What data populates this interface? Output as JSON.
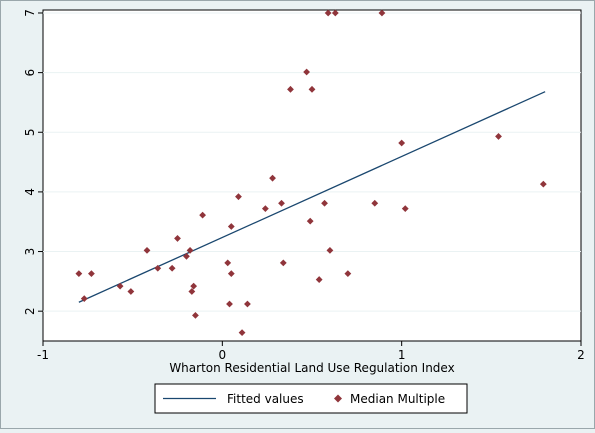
{
  "chart_data": {
    "type": "scatter",
    "xlabel": "Wharton Residential Land Use Regulation Index",
    "ylabel": "",
    "xlim": [
      -1.0,
      2.0
    ],
    "ylim": [
      1.5,
      7.05
    ],
    "x_ticks": [
      -1,
      0,
      1,
      2
    ],
    "x_tick_labels": [
      "-1",
      "0",
      "1",
      "2"
    ],
    "y_ticks": [
      2,
      3,
      4,
      5,
      6,
      7
    ],
    "y_tick_labels": [
      "2",
      "3",
      "4",
      "5",
      "6",
      "7"
    ],
    "grid": "horizontal",
    "legend_position": "bottom",
    "colors": {
      "background": "#eaf2f3",
      "plot_area": "#ffffff",
      "fitted_line": "#1a476f",
      "markers": "#90353b",
      "gridlines": "#eaf2f3"
    },
    "series": [
      {
        "name": "Fitted values",
        "type": "line",
        "x": [
          -0.8,
          1.8
        ],
        "y": [
          2.15,
          5.68
        ]
      },
      {
        "name": "Median Multiple",
        "type": "scatter",
        "marker": "diamond",
        "points": [
          [
            -0.8,
            2.63
          ],
          [
            -0.77,
            2.21
          ],
          [
            -0.73,
            2.63
          ],
          [
            -0.57,
            2.42
          ],
          [
            -0.51,
            2.33
          ],
          [
            -0.42,
            3.02
          ],
          [
            -0.36,
            2.72
          ],
          [
            -0.28,
            2.72
          ],
          [
            -0.25,
            3.22
          ],
          [
            -0.2,
            2.92
          ],
          [
            -0.18,
            3.02
          ],
          [
            -0.17,
            2.33
          ],
          [
            -0.16,
            2.42
          ],
          [
            -0.15,
            1.93
          ],
          [
            -0.11,
            3.61
          ],
          [
            0.03,
            2.81
          ],
          [
            0.04,
            2.12
          ],
          [
            0.05,
            3.42
          ],
          [
            0.05,
            2.63
          ],
          [
            0.09,
            3.92
          ],
          [
            0.11,
            1.64
          ],
          [
            0.14,
            2.12
          ],
          [
            0.24,
            3.72
          ],
          [
            0.28,
            4.23
          ],
          [
            0.33,
            3.81
          ],
          [
            0.34,
            2.81
          ],
          [
            0.38,
            5.72
          ],
          [
            0.47,
            6.01
          ],
          [
            0.49,
            3.51
          ],
          [
            0.5,
            5.72
          ],
          [
            0.54,
            2.53
          ],
          [
            0.57,
            3.81
          ],
          [
            0.6,
            3.02
          ],
          [
            0.59,
            7.0
          ],
          [
            0.63,
            7.0
          ],
          [
            0.7,
            2.63
          ],
          [
            0.85,
            3.81
          ],
          [
            0.89,
            7.0
          ],
          [
            1.0,
            4.82
          ],
          [
            1.02,
            3.72
          ],
          [
            1.54,
            4.93
          ],
          [
            1.79,
            4.13
          ]
        ]
      }
    ]
  }
}
